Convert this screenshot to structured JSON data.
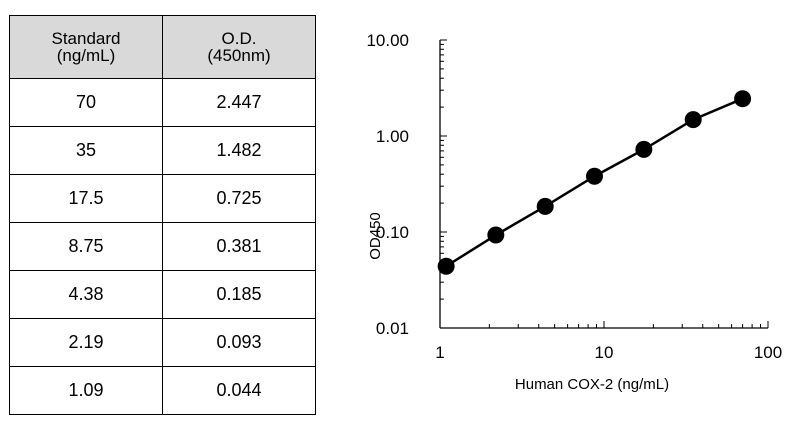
{
  "table": {
    "headers": [
      {
        "line1": "Standard",
        "line2": "(ng/mL)"
      },
      {
        "line1": "O.D.",
        "line2": "(450nm)"
      }
    ],
    "rows": [
      {
        "standard": "70",
        "od": "2.447"
      },
      {
        "standard": "35",
        "od": "1.482"
      },
      {
        "standard": "17.5",
        "od": "0.725"
      },
      {
        "standard": "8.75",
        "od": "0.381"
      },
      {
        "standard": "4.38",
        "od": "0.185"
      },
      {
        "standard": "2.19",
        "od": "0.093"
      },
      {
        "standard": "1.09",
        "od": "0.044"
      }
    ]
  },
  "chart_data": {
    "type": "scatter",
    "xlabel": "Human COX-2 (ng/mL)",
    "ylabel": "OD450",
    "xscale": "log",
    "yscale": "log",
    "xlim": [
      1,
      100
    ],
    "ylim": [
      0.01,
      10
    ],
    "x_ticks": [
      1,
      10,
      100
    ],
    "x_tick_labels": [
      "1",
      "10",
      "100"
    ],
    "y_ticks": [
      0.01,
      0.1,
      1,
      10
    ],
    "y_tick_labels": [
      "0.01",
      "0.10",
      "1.00",
      "10.00"
    ],
    "grid": false,
    "legend": "none",
    "trendline": "straight line through points",
    "colors": {
      "marker": "#000000",
      "line": "#000000"
    },
    "x": [
      1.09,
      2.19,
      4.38,
      8.75,
      17.5,
      35,
      70
    ],
    "y": [
      0.044,
      0.093,
      0.185,
      0.381,
      0.725,
      1.482,
      2.447
    ]
  }
}
